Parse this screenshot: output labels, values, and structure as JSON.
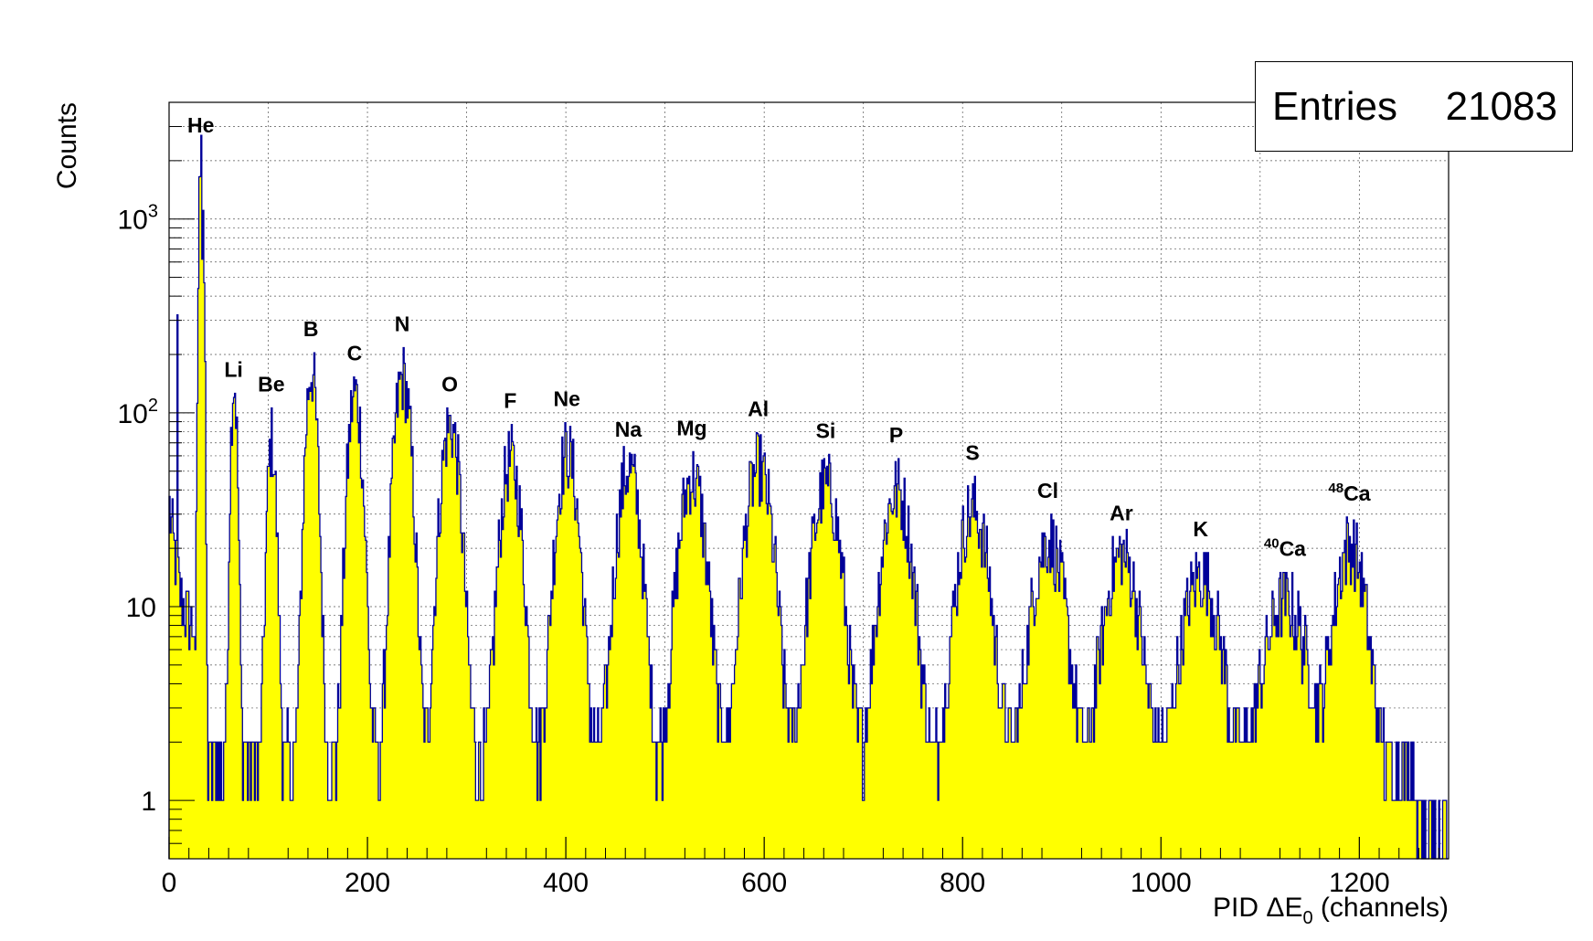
{
  "chart_data": {
    "type": "histogram",
    "xlabel": {
      "main": "PID ",
      "symbol": "ΔE",
      "sub": "0",
      "rest": " (channels)"
    },
    "ylabel": "Counts",
    "xlim": [
      0,
      1290
    ],
    "ylim": [
      0.5,
      4000
    ],
    "y_scale": "log",
    "grid": true,
    "x_ticks": [
      0,
      200,
      400,
      600,
      800,
      1000,
      1200
    ],
    "x_tick_labels": [
      "0",
      "200",
      "400",
      "600",
      "800",
      "1000",
      "1200"
    ],
    "y_ticks": [
      {
        "value": 1,
        "base": "1",
        "exp": ""
      },
      {
        "value": 10,
        "base": "10",
        "exp": ""
      },
      {
        "value": 100,
        "base": "10",
        "exp": "2"
      },
      {
        "value": 1000,
        "base": "10",
        "exp": "3"
      }
    ],
    "stats": {
      "label": "Entries",
      "value": "21083"
    },
    "fill_color": "#ffff00",
    "line_color": "#000099",
    "highlight_color": "#ff00ff",
    "peaks": [
      {
        "label": "He",
        "x": 32,
        "height": 2700,
        "width": 1.6,
        "prefix": ""
      },
      {
        "label": "Li",
        "x": 65,
        "height": 145,
        "width": 2.5,
        "prefix": ""
      },
      {
        "label": "Be",
        "x": 103,
        "height": 70,
        "width": 3.5,
        "prefix": ""
      },
      {
        "label": "B",
        "x": 143,
        "height": 165,
        "width": 4.5,
        "prefix": ""
      },
      {
        "label": "C",
        "x": 187,
        "height": 125,
        "width": 5.5,
        "prefix": ""
      },
      {
        "label": "N",
        "x": 235,
        "height": 150,
        "width": 6.5,
        "prefix": ""
      },
      {
        "label": "O",
        "x": 283,
        "height": 85,
        "width": 7.5,
        "prefix": ""
      },
      {
        "label": "F",
        "x": 344,
        "height": 55,
        "width": 8.0,
        "prefix": ""
      },
      {
        "label": "Ne",
        "x": 401,
        "height": 60,
        "width": 8.5,
        "prefix": ""
      },
      {
        "label": "Na",
        "x": 463,
        "height": 50,
        "width": 9.0,
        "prefix": ""
      },
      {
        "label": "Mg",
        "x": 527,
        "height": 45,
        "width": 10.0,
        "prefix": ""
      },
      {
        "label": "Al",
        "x": 594,
        "height": 50,
        "width": 10.5,
        "prefix": ""
      },
      {
        "label": "Si",
        "x": 662,
        "height": 40,
        "width": 11.0,
        "prefix": ""
      },
      {
        "label": "P",
        "x": 733,
        "height": 38,
        "width": 11.5,
        "prefix": ""
      },
      {
        "label": "S",
        "x": 810,
        "height": 30,
        "width": 12.0,
        "prefix": ""
      },
      {
        "label": "Cl",
        "x": 886,
        "height": 20,
        "width": 12.5,
        "prefix": ""
      },
      {
        "label": "Ar",
        "x": 960,
        "height": 17,
        "width": 13.0,
        "prefix": ""
      },
      {
        "label": "K",
        "x": 1040,
        "height": 13,
        "width": 14.0,
        "prefix": ""
      },
      {
        "label": "Ca",
        "x": 1125,
        "height": 9,
        "width": 16.0,
        "prefix": "40"
      },
      {
        "label": "Ca",
        "x": 1190,
        "height": 19,
        "width": 12.0,
        "prefix": "48",
        "highlight": true
      }
    ]
  }
}
